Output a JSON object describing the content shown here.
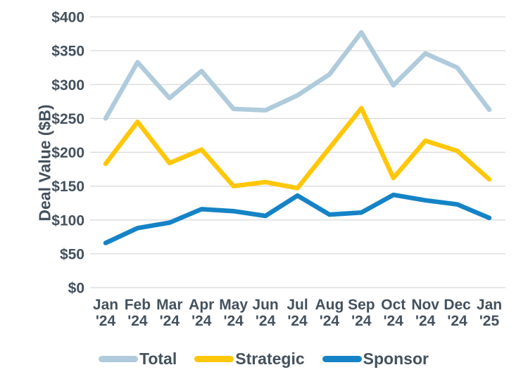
{
  "chart_data": {
    "type": "line",
    "title": "",
    "xlabel": "",
    "ylabel": "Deal Value ($B)",
    "categories": [
      "Jan '24",
      "Feb '24",
      "Mar '24",
      "Apr '24",
      "May '24",
      "Jun '24",
      "Jul '24",
      "Aug '24",
      "Sep '24",
      "Oct '24",
      "Nov '24",
      "Dec '24",
      "Jan '25"
    ],
    "series": [
      {
        "name": "Total",
        "color": "#AFCBDC",
        "values": [
          250,
          333,
          280,
          320,
          264,
          262,
          284,
          315,
          377,
          299,
          346,
          325,
          263
        ]
      },
      {
        "name": "Strategic",
        "color": "#FFC709",
        "values": [
          183,
          245,
          184,
          204,
          150,
          156,
          147,
          206,
          265,
          162,
          217,
          202,
          160
        ]
      },
      {
        "name": "Sponsor",
        "color": "#1583C6",
        "values": [
          66,
          88,
          96,
          116,
          113,
          106,
          136,
          108,
          111,
          137,
          129,
          123,
          103
        ]
      }
    ],
    "ylim": [
      0,
      400
    ],
    "ytick_step": 50,
    "ytick_labels": [
      "$0",
      "$50",
      "$100",
      "$150",
      "$200",
      "$250",
      "$300",
      "$350",
      "$400"
    ],
    "grid": "horizontal",
    "gridline_color": "#D9D9D9",
    "text_color": "#44515D",
    "legend_position": "bottom"
  }
}
